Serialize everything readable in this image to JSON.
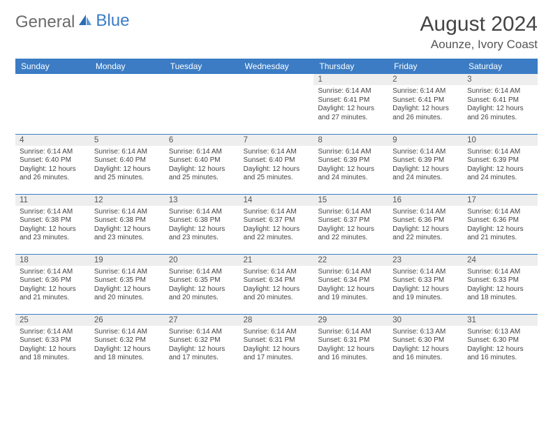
{
  "brand": {
    "part1": "General",
    "part2": "Blue"
  },
  "title": "August 2024",
  "location": "Aounze, Ivory Coast",
  "colors": {
    "header_bg": "#3b7cc4",
    "header_text": "#ffffff",
    "daynum_bg": "#eeeeee",
    "cell_border": "#3b7cc4",
    "brand_gray": "#6b6b6b",
    "brand_blue": "#3b7cc4",
    "body_text": "#444444"
  },
  "dayLabels": [
    "Sunday",
    "Monday",
    "Tuesday",
    "Wednesday",
    "Thursday",
    "Friday",
    "Saturday"
  ],
  "weeks": [
    [
      null,
      null,
      null,
      null,
      {
        "n": "1",
        "sr": "6:14 AM",
        "ss": "6:41 PM",
        "dl": "12 hours and 27 minutes."
      },
      {
        "n": "2",
        "sr": "6:14 AM",
        "ss": "6:41 PM",
        "dl": "12 hours and 26 minutes."
      },
      {
        "n": "3",
        "sr": "6:14 AM",
        "ss": "6:41 PM",
        "dl": "12 hours and 26 minutes."
      }
    ],
    [
      {
        "n": "4",
        "sr": "6:14 AM",
        "ss": "6:40 PM",
        "dl": "12 hours and 26 minutes."
      },
      {
        "n": "5",
        "sr": "6:14 AM",
        "ss": "6:40 PM",
        "dl": "12 hours and 25 minutes."
      },
      {
        "n": "6",
        "sr": "6:14 AM",
        "ss": "6:40 PM",
        "dl": "12 hours and 25 minutes."
      },
      {
        "n": "7",
        "sr": "6:14 AM",
        "ss": "6:40 PM",
        "dl": "12 hours and 25 minutes."
      },
      {
        "n": "8",
        "sr": "6:14 AM",
        "ss": "6:39 PM",
        "dl": "12 hours and 24 minutes."
      },
      {
        "n": "9",
        "sr": "6:14 AM",
        "ss": "6:39 PM",
        "dl": "12 hours and 24 minutes."
      },
      {
        "n": "10",
        "sr": "6:14 AM",
        "ss": "6:39 PM",
        "dl": "12 hours and 24 minutes."
      }
    ],
    [
      {
        "n": "11",
        "sr": "6:14 AM",
        "ss": "6:38 PM",
        "dl": "12 hours and 23 minutes."
      },
      {
        "n": "12",
        "sr": "6:14 AM",
        "ss": "6:38 PM",
        "dl": "12 hours and 23 minutes."
      },
      {
        "n": "13",
        "sr": "6:14 AM",
        "ss": "6:38 PM",
        "dl": "12 hours and 23 minutes."
      },
      {
        "n": "14",
        "sr": "6:14 AM",
        "ss": "6:37 PM",
        "dl": "12 hours and 22 minutes."
      },
      {
        "n": "15",
        "sr": "6:14 AM",
        "ss": "6:37 PM",
        "dl": "12 hours and 22 minutes."
      },
      {
        "n": "16",
        "sr": "6:14 AM",
        "ss": "6:36 PM",
        "dl": "12 hours and 22 minutes."
      },
      {
        "n": "17",
        "sr": "6:14 AM",
        "ss": "6:36 PM",
        "dl": "12 hours and 21 minutes."
      }
    ],
    [
      {
        "n": "18",
        "sr": "6:14 AM",
        "ss": "6:36 PM",
        "dl": "12 hours and 21 minutes."
      },
      {
        "n": "19",
        "sr": "6:14 AM",
        "ss": "6:35 PM",
        "dl": "12 hours and 20 minutes."
      },
      {
        "n": "20",
        "sr": "6:14 AM",
        "ss": "6:35 PM",
        "dl": "12 hours and 20 minutes."
      },
      {
        "n": "21",
        "sr": "6:14 AM",
        "ss": "6:34 PM",
        "dl": "12 hours and 20 minutes."
      },
      {
        "n": "22",
        "sr": "6:14 AM",
        "ss": "6:34 PM",
        "dl": "12 hours and 19 minutes."
      },
      {
        "n": "23",
        "sr": "6:14 AM",
        "ss": "6:33 PM",
        "dl": "12 hours and 19 minutes."
      },
      {
        "n": "24",
        "sr": "6:14 AM",
        "ss": "6:33 PM",
        "dl": "12 hours and 18 minutes."
      }
    ],
    [
      {
        "n": "25",
        "sr": "6:14 AM",
        "ss": "6:33 PM",
        "dl": "12 hours and 18 minutes."
      },
      {
        "n": "26",
        "sr": "6:14 AM",
        "ss": "6:32 PM",
        "dl": "12 hours and 18 minutes."
      },
      {
        "n": "27",
        "sr": "6:14 AM",
        "ss": "6:32 PM",
        "dl": "12 hours and 17 minutes."
      },
      {
        "n": "28",
        "sr": "6:14 AM",
        "ss": "6:31 PM",
        "dl": "12 hours and 17 minutes."
      },
      {
        "n": "29",
        "sr": "6:14 AM",
        "ss": "6:31 PM",
        "dl": "12 hours and 16 minutes."
      },
      {
        "n": "30",
        "sr": "6:13 AM",
        "ss": "6:30 PM",
        "dl": "12 hours and 16 minutes."
      },
      {
        "n": "31",
        "sr": "6:13 AM",
        "ss": "6:30 PM",
        "dl": "12 hours and 16 minutes."
      }
    ]
  ],
  "labels": {
    "sunrise": "Sunrise:",
    "sunset": "Sunset:",
    "daylight": "Daylight:"
  }
}
